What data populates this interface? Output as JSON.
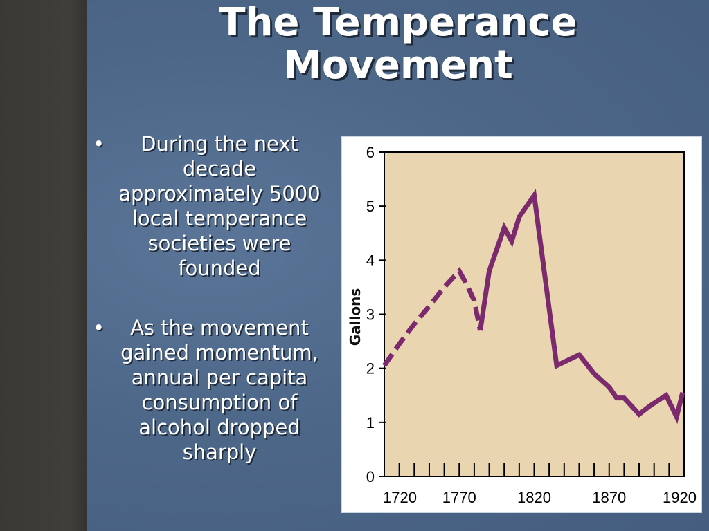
{
  "slide": {
    "title_line1": "The Temperance",
    "title_line2": "Movement",
    "bullets": [
      {
        "text": "During the next decade approximately 5000 local temperance societies were founded"
      },
      {
        "text": "As the movement gained momentum, annual per capita consumption of alcohol dropped sharply"
      }
    ],
    "bullet_glyph": "•"
  },
  "colors": {
    "line": "#7b2a6e",
    "plot_bg": "#e9d5b0",
    "slide_bg": "#4a6485"
  },
  "chart_data": {
    "type": "line",
    "title": "",
    "xlabel": "",
    "ylabel": "Gallons",
    "xlim": [
      1720,
      1920
    ],
    "ylim": [
      0,
      6
    ],
    "xticks": [
      1720,
      1770,
      1820,
      1870,
      1920
    ],
    "yticks": [
      0,
      1,
      2,
      3,
      4,
      5,
      6
    ],
    "minor_xtick_step": 10,
    "series": [
      {
        "style": "dashed",
        "x": [
          1720,
          1730,
          1740,
          1750,
          1760,
          1770,
          1775,
          1780,
          1784
        ],
        "y": [
          2.05,
          2.45,
          2.82,
          3.15,
          3.5,
          3.8,
          3.55,
          3.25,
          2.7
        ]
      },
      {
        "style": "solid",
        "x": [
          1784,
          1790,
          1800,
          1805,
          1810,
          1820,
          1835,
          1850,
          1860,
          1870,
          1875,
          1880,
          1890,
          1897,
          1908,
          1915,
          1919
        ],
        "y": [
          2.7,
          3.8,
          4.6,
          4.35,
          4.8,
          5.2,
          2.05,
          2.25,
          1.9,
          1.65,
          1.45,
          1.45,
          1.15,
          1.3,
          1.5,
          1.1,
          1.55
        ]
      }
    ]
  }
}
